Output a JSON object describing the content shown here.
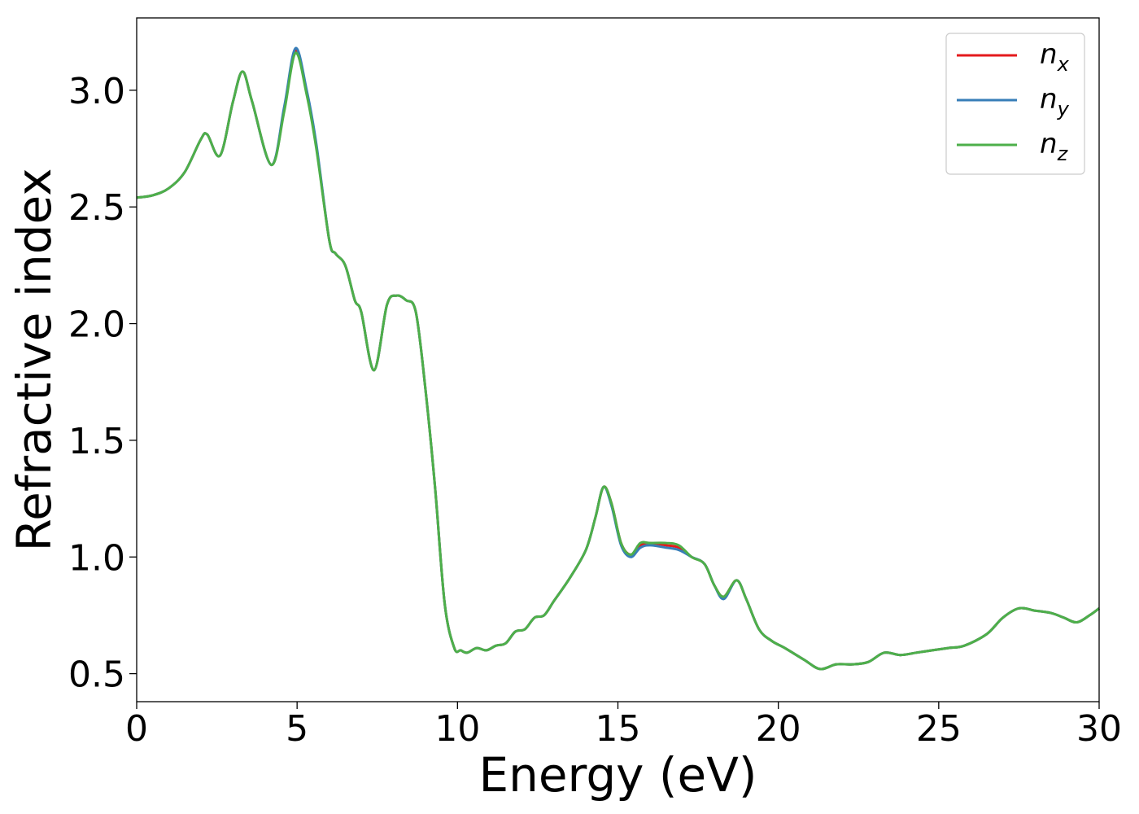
{
  "chart_data": {
    "type": "line",
    "title": "",
    "xlabel": "Energy (eV)",
    "ylabel": "Refractive index",
    "xlim": [
      0,
      30
    ],
    "ylim": [
      0.38,
      3.31
    ],
    "xticks": [
      0,
      5,
      10,
      15,
      20,
      25,
      30
    ],
    "xtick_labels": [
      "0",
      "5",
      "10",
      "15",
      "20",
      "25",
      "30"
    ],
    "yticks": [
      0.5,
      1.0,
      1.5,
      2.0,
      2.5,
      3.0
    ],
    "ytick_labels": [
      "0.5",
      "1.0",
      "1.5",
      "2.0",
      "2.5",
      "3.0"
    ],
    "grid": false,
    "legend_position": "top-right",
    "series": [
      {
        "name": "n",
        "subscript": "x",
        "color": "#e41a1c",
        "x": [
          0,
          0.5,
          1.0,
          1.5,
          2.0,
          2.2,
          2.6,
          3.0,
          3.3,
          3.6,
          4.2,
          4.6,
          4.95,
          5.3,
          5.6,
          6.0,
          6.2,
          6.5,
          6.8,
          7.0,
          7.4,
          7.8,
          8.1,
          8.4,
          8.7,
          9.0,
          9.3,
          9.6,
          9.9,
          10.1,
          10.3,
          10.6,
          10.9,
          11.2,
          11.5,
          11.8,
          12.1,
          12.4,
          12.7,
          13.0,
          13.5,
          14.0,
          14.3,
          14.55,
          14.8,
          15.1,
          15.4,
          15.7,
          16.0,
          16.5,
          16.9,
          17.3,
          17.7,
          18.0,
          18.3,
          18.7,
          19.0,
          19.4,
          19.8,
          20.2,
          20.8,
          21.3,
          21.8,
          22.3,
          22.8,
          23.3,
          23.8,
          24.3,
          24.8,
          25.3,
          25.8,
          26.5,
          27.0,
          27.5,
          28.0,
          28.5,
          28.9,
          29.3,
          29.7,
          30.0
        ],
        "y": [
          2.54,
          2.55,
          2.58,
          2.65,
          2.79,
          2.81,
          2.72,
          2.95,
          3.08,
          2.95,
          2.68,
          2.92,
          3.17,
          2.99,
          2.76,
          2.36,
          2.3,
          2.25,
          2.1,
          2.05,
          1.8,
          2.08,
          2.12,
          2.1,
          2.05,
          1.72,
          1.3,
          0.8,
          0.61,
          0.6,
          0.59,
          0.61,
          0.6,
          0.62,
          0.63,
          0.68,
          0.69,
          0.74,
          0.75,
          0.81,
          0.91,
          1.03,
          1.17,
          1.3,
          1.23,
          1.06,
          1.01,
          1.05,
          1.06,
          1.05,
          1.04,
          1.0,
          0.97,
          0.88,
          0.83,
          0.9,
          0.82,
          0.69,
          0.64,
          0.61,
          0.56,
          0.52,
          0.54,
          0.54,
          0.55,
          0.59,
          0.58,
          0.59,
          0.6,
          0.61,
          0.62,
          0.67,
          0.74,
          0.78,
          0.77,
          0.76,
          0.74,
          0.72,
          0.75,
          0.78
        ]
      },
      {
        "name": "n",
        "subscript": "y",
        "color": "#377eb8",
        "x": [
          0,
          0.5,
          1.0,
          1.5,
          2.0,
          2.2,
          2.6,
          3.0,
          3.3,
          3.6,
          4.2,
          4.6,
          4.95,
          5.3,
          5.6,
          6.0,
          6.2,
          6.5,
          6.8,
          7.0,
          7.4,
          7.8,
          8.1,
          8.4,
          8.7,
          9.0,
          9.3,
          9.6,
          9.9,
          10.1,
          10.3,
          10.6,
          10.9,
          11.2,
          11.5,
          11.8,
          12.1,
          12.4,
          12.7,
          13.0,
          13.5,
          14.0,
          14.3,
          14.55,
          14.8,
          15.1,
          15.4,
          15.7,
          16.0,
          16.5,
          16.9,
          17.3,
          17.7,
          18.0,
          18.3,
          18.7,
          19.0,
          19.4,
          19.8,
          20.2,
          20.8,
          21.3,
          21.8,
          22.3,
          22.8,
          23.3,
          23.8,
          24.3,
          24.8,
          25.3,
          25.8,
          26.5,
          27.0,
          27.5,
          28.0,
          28.5,
          28.9,
          29.3,
          29.7,
          30.0
        ],
        "y": [
          2.54,
          2.55,
          2.58,
          2.65,
          2.79,
          2.81,
          2.72,
          2.95,
          3.08,
          2.95,
          2.68,
          2.93,
          3.18,
          3.0,
          2.77,
          2.36,
          2.3,
          2.25,
          2.1,
          2.05,
          1.8,
          2.08,
          2.12,
          2.1,
          2.05,
          1.72,
          1.3,
          0.8,
          0.61,
          0.6,
          0.59,
          0.61,
          0.6,
          0.62,
          0.63,
          0.68,
          0.69,
          0.74,
          0.75,
          0.81,
          0.91,
          1.03,
          1.17,
          1.3,
          1.22,
          1.05,
          1.0,
          1.04,
          1.05,
          1.04,
          1.03,
          1.0,
          0.97,
          0.88,
          0.82,
          0.9,
          0.82,
          0.69,
          0.64,
          0.61,
          0.56,
          0.52,
          0.54,
          0.54,
          0.55,
          0.59,
          0.58,
          0.59,
          0.6,
          0.61,
          0.62,
          0.67,
          0.74,
          0.78,
          0.77,
          0.76,
          0.74,
          0.72,
          0.75,
          0.78
        ]
      },
      {
        "name": "n",
        "subscript": "z",
        "color": "#4daf4a",
        "x": [
          0,
          0.5,
          1.0,
          1.5,
          2.0,
          2.2,
          2.6,
          3.0,
          3.3,
          3.6,
          4.2,
          4.6,
          4.95,
          5.3,
          5.6,
          6.0,
          6.2,
          6.5,
          6.8,
          7.0,
          7.4,
          7.8,
          8.1,
          8.4,
          8.7,
          9.0,
          9.3,
          9.6,
          9.9,
          10.1,
          10.3,
          10.6,
          10.9,
          11.2,
          11.5,
          11.8,
          12.1,
          12.4,
          12.7,
          13.0,
          13.5,
          14.0,
          14.3,
          14.55,
          14.8,
          15.1,
          15.4,
          15.7,
          16.0,
          16.5,
          16.9,
          17.3,
          17.7,
          18.0,
          18.3,
          18.7,
          19.0,
          19.4,
          19.8,
          20.2,
          20.8,
          21.3,
          21.8,
          22.3,
          22.8,
          23.3,
          23.8,
          24.3,
          24.8,
          25.3,
          25.8,
          26.5,
          27.0,
          27.5,
          28.0,
          28.5,
          28.9,
          29.3,
          29.7,
          30.0
        ],
        "y": [
          2.54,
          2.55,
          2.58,
          2.65,
          2.79,
          2.81,
          2.72,
          2.95,
          3.08,
          2.95,
          2.68,
          2.91,
          3.16,
          2.98,
          2.75,
          2.36,
          2.3,
          2.25,
          2.1,
          2.05,
          1.8,
          2.08,
          2.12,
          2.1,
          2.05,
          1.72,
          1.3,
          0.8,
          0.61,
          0.6,
          0.59,
          0.61,
          0.6,
          0.62,
          0.63,
          0.68,
          0.69,
          0.74,
          0.75,
          0.81,
          0.91,
          1.03,
          1.17,
          1.3,
          1.23,
          1.06,
          1.01,
          1.06,
          1.06,
          1.06,
          1.05,
          1.0,
          0.97,
          0.88,
          0.83,
          0.9,
          0.82,
          0.69,
          0.64,
          0.61,
          0.56,
          0.52,
          0.54,
          0.54,
          0.55,
          0.59,
          0.58,
          0.59,
          0.6,
          0.61,
          0.62,
          0.67,
          0.74,
          0.78,
          0.77,
          0.76,
          0.74,
          0.72,
          0.75,
          0.78
        ]
      }
    ]
  }
}
